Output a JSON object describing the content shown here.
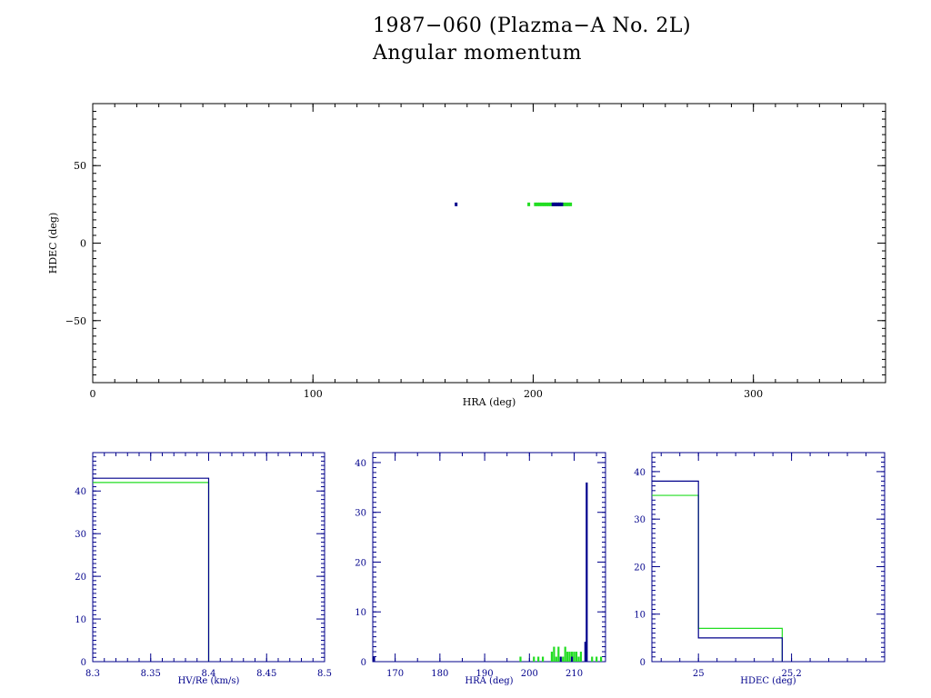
{
  "title": "1987−060 (Plazma−A No. 2L)",
  "subtitle": "Angular momentum",
  "colors": {
    "axes_main": "#000000",
    "axes_hist": "#00008b",
    "series_a": "#00008b",
    "series_b": "#22dd22"
  },
  "chart_data": [
    {
      "type": "scatter",
      "xlabel": "HRA (deg)",
      "ylabel": "HDEC (deg)",
      "xlim": [
        0,
        360
      ],
      "ylim": [
        -90,
        90
      ],
      "xticks": [
        0,
        100,
        200,
        300
      ],
      "yticks": [
        50,
        0,
        -50
      ],
      "grid": false,
      "series": [
        {
          "color": "#22dd22",
          "points": [
            [
              198,
              25
            ],
            [
              201,
              25
            ],
            [
              202,
              25
            ],
            [
              203,
              25
            ],
            [
              204,
              25
            ],
            [
              205,
              25
            ],
            [
              206,
              25
            ],
            [
              207,
              25
            ],
            [
              208,
              25
            ],
            [
              209,
              25
            ],
            [
              210,
              25
            ],
            [
              211,
              25
            ],
            [
              212,
              25
            ],
            [
              213,
              25
            ],
            [
              214,
              25
            ],
            [
              215,
              25
            ],
            [
              216,
              25
            ],
            [
              217,
              25
            ]
          ]
        },
        {
          "color": "#00008b",
          "points": [
            [
              165,
              25
            ],
            [
              209,
              25
            ],
            [
              210,
              25
            ],
            [
              211,
              25
            ],
            [
              212,
              25
            ],
            [
              213,
              25
            ]
          ]
        }
      ]
    },
    {
      "type": "bar",
      "xlabel": "HV/Re (km/s)",
      "xlim": [
        8.3,
        8.5
      ],
      "ylim": [
        0,
        49
      ],
      "xticks": [
        8.3,
        8.35,
        8.4,
        8.45,
        8.5
      ],
      "xticklabels": [
        "8.3",
        "8.35",
        "8.4",
        "8.45",
        "8.5"
      ],
      "yticks": [
        0,
        10,
        20,
        30,
        40
      ],
      "series": [
        {
          "color": "#22dd22",
          "bins": [
            [
              8.3,
              8.4,
              42
            ]
          ]
        },
        {
          "color": "#00008b",
          "bins": [
            [
              8.3,
              8.4,
              43
            ]
          ]
        }
      ]
    },
    {
      "type": "bar",
      "xlabel": "HRA (deg)",
      "xlim": [
        165,
        217
      ],
      "ylim": [
        0,
        42
      ],
      "xticks": [
        170,
        180,
        190,
        200,
        210
      ],
      "xticklabels": [
        "170",
        "180",
        "190",
        "200",
        "210"
      ],
      "yticks": [
        0,
        10,
        20,
        30,
        40
      ],
      "series": [
        {
          "color": "#22dd22",
          "spikes": [
            [
              198,
              1
            ],
            [
              201,
              1
            ],
            [
              202,
              1
            ],
            [
              203,
              1
            ],
            [
              205,
              2
            ],
            [
              205.5,
              3
            ],
            [
              206,
              1
            ],
            [
              206.5,
              3
            ],
            [
              207.5,
              1
            ],
            [
              208,
              3
            ],
            [
              208.5,
              2
            ],
            [
              209,
              2
            ],
            [
              209.5,
              2
            ],
            [
              210,
              2
            ],
            [
              210.5,
              2
            ],
            [
              211,
              1
            ],
            [
              211.5,
              2
            ],
            [
              214,
              1
            ],
            [
              215,
              1
            ],
            [
              216,
              1
            ]
          ]
        },
        {
          "color": "#00008b",
          "spikes": [
            [
              165.3,
              1
            ],
            [
              207,
              1
            ],
            [
              209.5,
              1
            ],
            [
              212.5,
              4
            ],
            [
              212.8,
              36
            ]
          ]
        }
      ]
    },
    {
      "type": "bar",
      "xlabel": "HDEC (deg)",
      "xlim": [
        24.9,
        25.4
      ],
      "ylim": [
        0,
        44
      ],
      "xticks": [
        25,
        25.2
      ],
      "xticklabels": [
        "25",
        "25.2"
      ],
      "yticks": [
        0,
        10,
        20,
        30,
        40
      ],
      "series": [
        {
          "color": "#22dd22",
          "bins": [
            [
              24.9,
              25.0,
              35
            ],
            [
              25.0,
              25.18,
              7
            ]
          ]
        },
        {
          "color": "#00008b",
          "bins": [
            [
              24.9,
              25.0,
              38
            ],
            [
              25.0,
              25.18,
              5
            ]
          ]
        }
      ]
    }
  ]
}
